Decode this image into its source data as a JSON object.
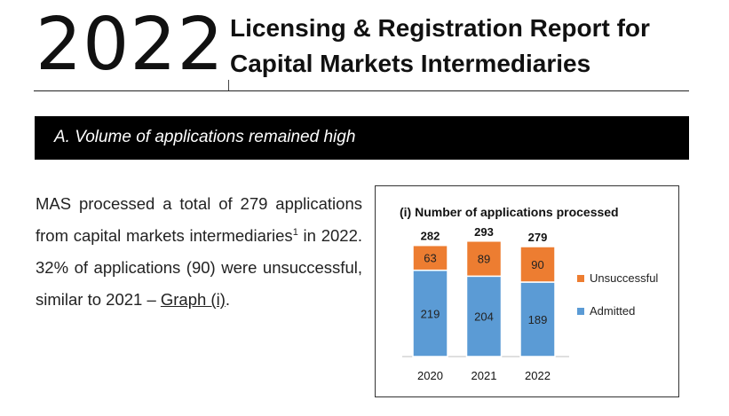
{
  "header": {
    "year": "2022",
    "title_line1": "Licensing & Registration Report for",
    "title_line2": "Capital Markets Intermediaries"
  },
  "section": {
    "heading": "A. Volume of applications remained high"
  },
  "paragraph": {
    "text_before_sup": "MAS processed a total of 279 applications from capital markets intermediaries",
    "footnote_marker": "1",
    "text_after_sup": " in 2022. 32% of applications (90) were unsuccessful, similar to 2021 – ",
    "graph_link": "Graph (i)",
    "ending": "."
  },
  "colors": {
    "admitted": "#5b9bd5",
    "unsuccessful": "#ed7d31"
  },
  "chart_data": {
    "type": "bar",
    "stacked": true,
    "title": "(i) Number of applications processed",
    "categories": [
      "2020",
      "2021",
      "2022"
    ],
    "series": [
      {
        "name": "Admitted",
        "values": [
          219,
          204,
          189
        ]
      },
      {
        "name": "Unsuccessful",
        "values": [
          63,
          89,
          90
        ]
      }
    ],
    "totals": [
      282,
      293,
      279
    ],
    "legend_position": "right",
    "grid": false,
    "ylim": [
      0,
      300
    ]
  }
}
